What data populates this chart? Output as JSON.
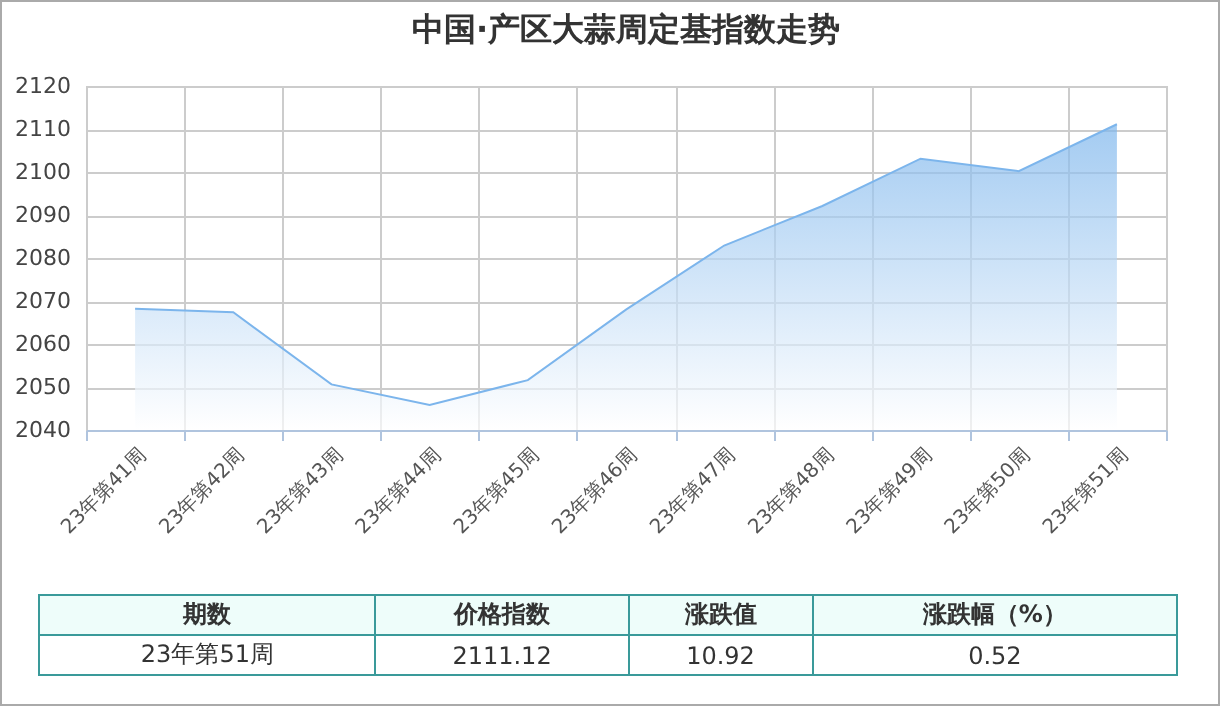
{
  "chart_data": {
    "type": "area",
    "title": "中国·产区大蒜周定基指数走势",
    "categories": [
      "23年第41周",
      "23年第42周",
      "23年第43周",
      "23年第44周",
      "23年第45周",
      "23年第46周",
      "23年第47周",
      "23年第48周",
      "23年第49周",
      "23年第50周",
      "23年第51周"
    ],
    "series": [
      {
        "color": "#7cb5ec",
        "values": [
          2068.2,
          2067.4,
          2050.6,
          2045.8,
          2051.6,
          2068.0,
          2082.9,
          2092.1,
          2103.1,
          2100.2,
          2111.1
        ]
      }
    ],
    "ylim": [
      2040,
      2120
    ],
    "yticks": [
      2040,
      2050,
      2060,
      2070,
      2080,
      2090,
      2100,
      2110,
      2120
    ],
    "grid": true,
    "annotations": [
      "期数",
      "价格指数",
      "涨跌值",
      "涨跌幅（%）",
      "23年第51周",
      "2111.12",
      "10.92",
      "0.52"
    ]
  }
}
